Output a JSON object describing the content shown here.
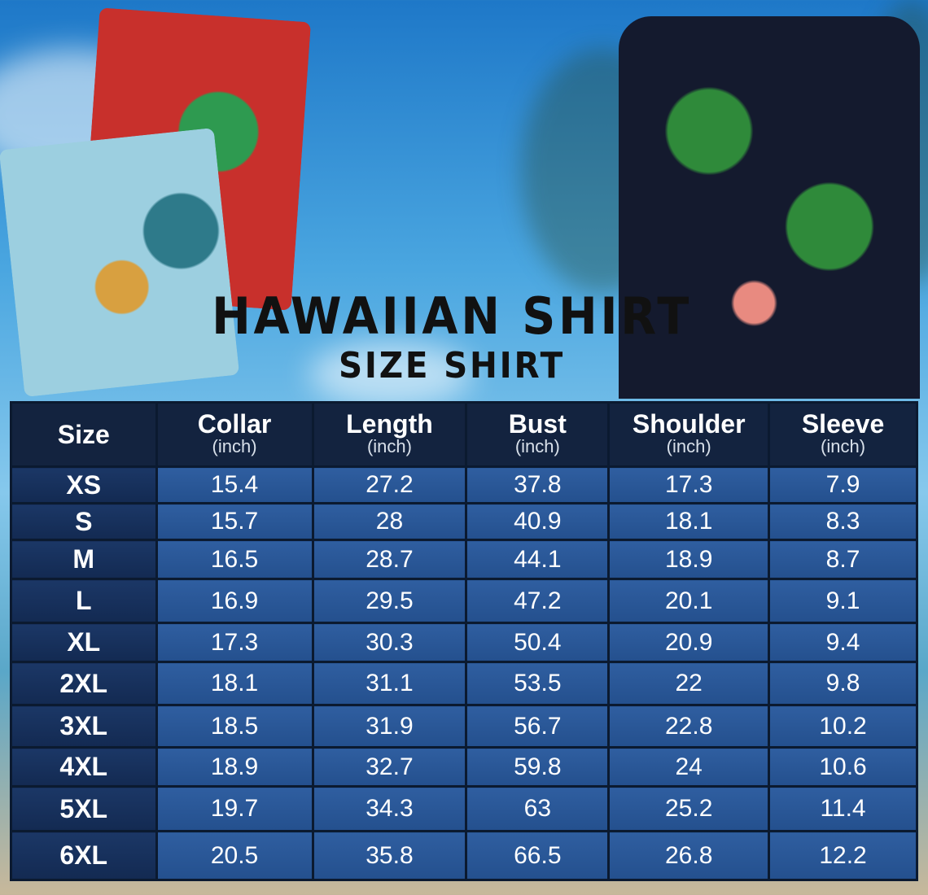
{
  "title": "HAWAIIAN SHIRT",
  "subtitle": "SIZE SHIRT",
  "colors": {
    "header_bg": "#13233f",
    "size_col_bg": "#1b3766",
    "cell_bg": "#2f5ea0",
    "border": "#0b1a30"
  },
  "table": {
    "headers": [
      {
        "label": "Size",
        "unit": ""
      },
      {
        "label": "Collar",
        "unit": "(inch)"
      },
      {
        "label": "Length",
        "unit": "(inch)"
      },
      {
        "label": "Bust",
        "unit": "(inch)"
      },
      {
        "label": "Shoulder",
        "unit": "(inch)"
      },
      {
        "label": "Sleeve",
        "unit": "(inch)"
      }
    ],
    "rows": [
      [
        "XS",
        "15.4",
        "27.2",
        "37.8",
        "17.3",
        "7.9"
      ],
      [
        "S",
        "15.7",
        "28",
        "40.9",
        "18.1",
        "8.3"
      ],
      [
        "M",
        "16.5",
        "28.7",
        "44.1",
        "18.9",
        "8.7"
      ],
      [
        "L",
        "16.9",
        "29.5",
        "47.2",
        "20.1",
        "9.1"
      ],
      [
        "XL",
        "17.3",
        "30.3",
        "50.4",
        "20.9",
        "9.4"
      ],
      [
        "2XL",
        "18.1",
        "31.1",
        "53.5",
        "22",
        "9.8"
      ],
      [
        "3XL",
        "18.5",
        "31.9",
        "56.7",
        "22.8",
        "10.2"
      ],
      [
        "4XL",
        "18.9",
        "32.7",
        "59.8",
        "24",
        "10.6"
      ],
      [
        "5XL",
        "19.7",
        "34.3",
        "63",
        "25.2",
        "11.4"
      ],
      [
        "6XL",
        "20.5",
        "35.8",
        "66.5",
        "26.8",
        "12.2"
      ]
    ]
  }
}
